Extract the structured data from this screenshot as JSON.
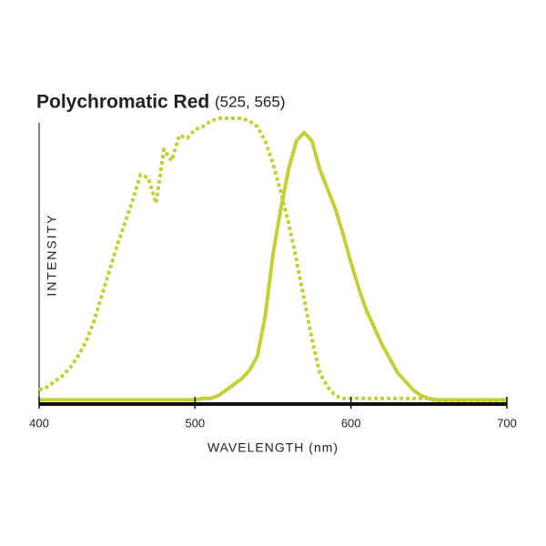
{
  "chart_data": {
    "type": "line",
    "title": "Polychromatic Red",
    "subtitle": "(525, 565)",
    "x_label": "WAVELENGTH (nm)",
    "y_label": "INTENSITY",
    "x": [
      400,
      405,
      410,
      415,
      420,
      425,
      430,
      435,
      440,
      445,
      450,
      455,
      460,
      465,
      470,
      475,
      480,
      485,
      490,
      495,
      500,
      505,
      510,
      515,
      520,
      525,
      530,
      535,
      540,
      545,
      550,
      555,
      560,
      565,
      570,
      575,
      580,
      585,
      590,
      595,
      600,
      605,
      610,
      615,
      620,
      625,
      630,
      635,
      640,
      645,
      650,
      655,
      660,
      665,
      670,
      675,
      680,
      685,
      690,
      695,
      700
    ],
    "series": [
      {
        "color": "#c5cf36",
        "dashed": true,
        "values": [
          4,
          5,
          7,
          9,
          12,
          16,
          21,
          28,
          37,
          46,
          55,
          63,
          71,
          80,
          79,
          70,
          89,
          85,
          94,
          93,
          96,
          97,
          99,
          100,
          100,
          100,
          100,
          99,
          97,
          92,
          84,
          74,
          63,
          50,
          36,
          22,
          10,
          5,
          2,
          1,
          1,
          1,
          1,
          1,
          1,
          1,
          1,
          1,
          1,
          1,
          1,
          0,
          0,
          0,
          0,
          0,
          0,
          0,
          0,
          0,
          0
        ]
      },
      {
        "color": "#c5cf36",
        "dashed": false,
        "values": [
          0.5,
          0.5,
          0.5,
          0.5,
          0.5,
          0.5,
          0.5,
          0.5,
          0.5,
          0.5,
          0.5,
          0.5,
          0.5,
          0.5,
          0.5,
          0.5,
          0.5,
          0.5,
          0.5,
          0.5,
          0.5,
          1,
          1,
          2,
          4,
          6,
          8,
          11,
          16,
          30,
          52,
          68,
          82,
          92,
          95,
          92,
          82,
          75,
          68,
          59,
          49,
          40,
          32,
          26,
          20,
          15,
          10,
          7,
          4,
          2,
          1,
          0.5,
          0.5,
          0.5,
          0.5,
          0.5,
          0.5,
          0.5,
          0.5,
          0.5,
          0.5
        ]
      }
    ],
    "xlim": [
      400,
      700
    ],
    "xticks": [
      400,
      500,
      600,
      700
    ],
    "ylim": [
      0,
      100
    ],
    "title_color": "#c5cf36"
  }
}
